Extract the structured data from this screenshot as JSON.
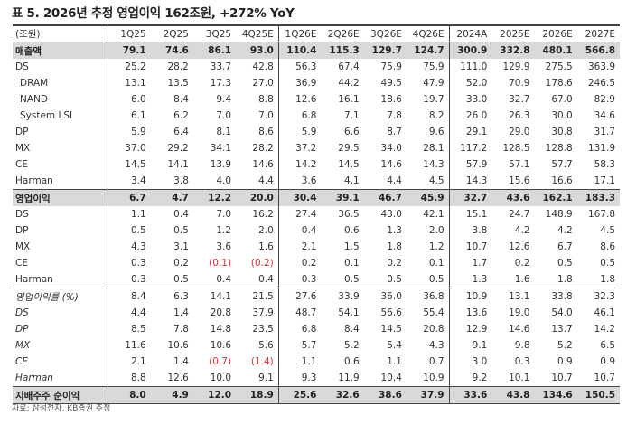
{
  "title": "표 5. 2026년 추정 영업이익 162조원, +272% YoY",
  "table": {
    "unit_label": "(조원)",
    "columns": [
      "1Q25",
      "2Q25",
      "3Q25",
      "4Q25E",
      "1Q26E",
      "2Q26E",
      "3Q26E",
      "4Q26E",
      "2024A",
      "2025E",
      "2026E",
      "2027E"
    ],
    "rows": [
      {
        "label": "매출액",
        "style": "highlight",
        "values": [
          "79.1",
          "74.6",
          "86.1",
          "93.0",
          "110.4",
          "115.3",
          "129.7",
          "124.7",
          "300.9",
          "332.8",
          "480.1",
          "566.8"
        ]
      },
      {
        "label": "DS",
        "values": [
          "25.2",
          "28.2",
          "33.7",
          "42.8",
          "56.3",
          "67.4",
          "75.9",
          "75.9",
          "111.0",
          "129.9",
          "275.5",
          "363.9"
        ]
      },
      {
        "label": "DRAM",
        "indent": true,
        "values": [
          "13.1",
          "13.5",
          "17.3",
          "27.0",
          "36.9",
          "44.2",
          "49.5",
          "47.9",
          "52.0",
          "70.9",
          "178.6",
          "246.5"
        ]
      },
      {
        "label": "NAND",
        "indent": true,
        "values": [
          "6.0",
          "8.4",
          "9.4",
          "8.8",
          "12.6",
          "16.1",
          "18.6",
          "19.7",
          "33.0",
          "32.7",
          "67.0",
          "82.9"
        ]
      },
      {
        "label": "System LSI",
        "indent": true,
        "values": [
          "6.1",
          "6.2",
          "7.0",
          "7.0",
          "6.8",
          "7.1",
          "7.8",
          "8.2",
          "26.0",
          "26.3",
          "30.0",
          "34.6"
        ]
      },
      {
        "label": "DP",
        "values": [
          "5.9",
          "6.4",
          "8.1",
          "8.6",
          "5.9",
          "6.6",
          "8.7",
          "9.6",
          "29.1",
          "29.0",
          "30.8",
          "31.7"
        ]
      },
      {
        "label": "MX",
        "values": [
          "37.0",
          "29.2",
          "34.1",
          "28.2",
          "37.2",
          "29.5",
          "34.0",
          "28.1",
          "117.2",
          "128.5",
          "128.8",
          "131.9"
        ]
      },
      {
        "label": "CE",
        "values": [
          "14.5",
          "14.1",
          "13.9",
          "14.6",
          "14.2",
          "14.5",
          "14.6",
          "14.3",
          "57.9",
          "57.1",
          "57.7",
          "58.3"
        ]
      },
      {
        "label": "Harman",
        "values": [
          "3.4",
          "3.8",
          "4.0",
          "4.4",
          "3.6",
          "4.1",
          "4.4",
          "4.5",
          "14.3",
          "15.6",
          "16.6",
          "17.1"
        ]
      },
      {
        "label": "영업이익",
        "style": "highlight",
        "values": [
          "6.7",
          "4.7",
          "12.2",
          "20.0",
          "30.4",
          "39.1",
          "46.7",
          "45.9",
          "32.7",
          "43.6",
          "162.1",
          "183.3"
        ]
      },
      {
        "label": "DS",
        "values": [
          "1.1",
          "0.4",
          "7.0",
          "16.2",
          "27.4",
          "36.5",
          "43.0",
          "42.1",
          "15.1",
          "24.7",
          "148.9",
          "167.8"
        ]
      },
      {
        "label": "DP",
        "values": [
          "0.5",
          "0.5",
          "1.2",
          "2.0",
          "0.4",
          "0.6",
          "1.3",
          "2.0",
          "3.8",
          "4.2",
          "4.2",
          "4.5"
        ]
      },
      {
        "label": "MX",
        "values": [
          "4.3",
          "3.1",
          "3.6",
          "1.6",
          "2.1",
          "1.5",
          "1.8",
          "1.2",
          "10.7",
          "12.6",
          "6.7",
          "8.6"
        ]
      },
      {
        "label": "CE",
        "values": [
          "0.3",
          "0.2",
          "(0.1)",
          "(0.2)",
          "0.2",
          "0.1",
          "0.2",
          "0.1",
          "1.7",
          "0.2",
          "0.5",
          "0.5"
        ]
      },
      {
        "label": "Harman",
        "values": [
          "0.3",
          "0.5",
          "0.4",
          "0.4",
          "0.3",
          "0.5",
          "0.5",
          "0.5",
          "1.3",
          "1.6",
          "1.8",
          "1.8"
        ]
      },
      {
        "label": "영업이익률 (%)",
        "style": "italic-top",
        "values": [
          "8.4",
          "6.3",
          "14.1",
          "21.5",
          "27.6",
          "33.9",
          "36.0",
          "36.8",
          "10.9",
          "13.1",
          "33.8",
          "32.3"
        ]
      },
      {
        "label": "DS",
        "style": "italic",
        "values": [
          "4.4",
          "1.4",
          "20.8",
          "37.9",
          "48.7",
          "54.1",
          "56.6",
          "55.4",
          "13.6",
          "19.0",
          "54.0",
          "46.1"
        ]
      },
      {
        "label": "DP",
        "style": "italic",
        "values": [
          "8.5",
          "7.8",
          "14.8",
          "23.5",
          "6.8",
          "8.4",
          "14.5",
          "20.8",
          "12.9",
          "14.6",
          "13.7",
          "14.2"
        ]
      },
      {
        "label": "MX",
        "style": "italic",
        "values": [
          "11.6",
          "10.6",
          "10.6",
          "5.6",
          "5.7",
          "5.2",
          "5.4",
          "4.3",
          "9.1",
          "9.8",
          "5.2",
          "6.5"
        ]
      },
      {
        "label": "CE",
        "style": "italic",
        "values": [
          "2.1",
          "1.4",
          "(0.7)",
          "(1.4)",
          "1.1",
          "0.6",
          "1.1",
          "0.7",
          "3.0",
          "0.3",
          "0.9",
          "0.9"
        ]
      },
      {
        "label": "Harman",
        "style": "italic",
        "values": [
          "8.8",
          "12.6",
          "10.0",
          "9.1",
          "9.3",
          "11.9",
          "10.4",
          "10.9",
          "9.2",
          "10.1",
          "10.7",
          "10.7"
        ]
      },
      {
        "label": "지배주주 순이익",
        "style": "highlight",
        "values": [
          "8.0",
          "4.9",
          "12.0",
          "18.9",
          "25.6",
          "32.6",
          "38.6",
          "37.9",
          "33.6",
          "43.8",
          "134.6",
          "150.5"
        ]
      }
    ]
  },
  "colors": {
    "negative": "#e0303a",
    "highlight_bg": "#d9d9d9"
  },
  "source": "자료: 삼성전자, KB증권 추정"
}
